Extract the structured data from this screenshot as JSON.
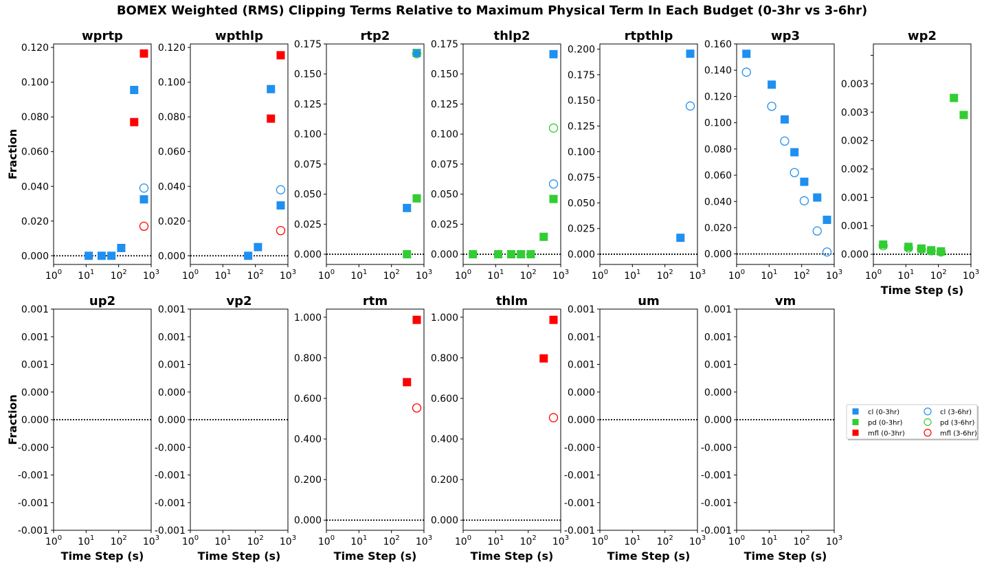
{
  "title": "BOMEX Weighted (RMS) Clipping Terms Relative to Maximum Physical Term In Each Budget (0-3hr vs 3-6hr)",
  "colors": {
    "cl": "#1f8ff0",
    "pd": "#32cd32",
    "mfl": "#ff0000"
  },
  "legend": {
    "placement": "right, lower half",
    "entries": [
      {
        "key": "cl_0_3",
        "label": "cl (0-3hr)",
        "var": "cl",
        "marker": "filled-square"
      },
      {
        "key": "pd_0_3",
        "label": "pd  (0-3hr)",
        "var": "pd",
        "marker": "filled-square"
      },
      {
        "key": "mfl_0_3",
        "label": "mfl (0-3hr)",
        "var": "mfl",
        "marker": "filled-square"
      },
      {
        "key": "cl_3_6",
        "label": "cl (3-6hr)",
        "var": "cl",
        "marker": "open-circle"
      },
      {
        "key": "pd_3_6",
        "label": "pd  (3-6hr)",
        "var": "pd",
        "marker": "open-circle"
      },
      {
        "key": "mfl_3_6",
        "label": "mfl (3-6hr)",
        "var": "mfl",
        "marker": "open-circle"
      }
    ]
  },
  "x_ticks": [
    "10^0",
    "10^1",
    "10^2",
    "10^3"
  ],
  "chart_data": [
    {
      "type": "scatter",
      "title": "wprtp",
      "xscale": "log",
      "xlim": [
        1,
        1000
      ],
      "ylim": [
        -0.005,
        0.122
      ],
      "ylabel": "Fraction",
      "xlabel": "",
      "yticks": [
        0,
        0.02,
        0.04,
        0.06,
        0.08,
        0.1,
        0.12
      ],
      "ytick_labels": [
        "0.000",
        "0.020",
        "0.040",
        "0.060",
        "0.080",
        "0.100",
        "0.120"
      ],
      "series": [
        {
          "name": "cl (0-3hr)",
          "key": "cl_0_3",
          "points": [
            [
              12,
              0.0
            ],
            [
              30,
              0.0
            ],
            [
              60,
              0.0
            ],
            [
              120,
              0.0045
            ],
            [
              300,
              0.0955
            ],
            [
              600,
              0.0325
            ]
          ]
        },
        {
          "name": "mfl (0-3hr)",
          "key": "mfl_0_3",
          "points": [
            [
              300,
              0.077
            ],
            [
              600,
              0.1165
            ]
          ]
        },
        {
          "name": "cl (3-6hr)",
          "key": "cl_3_6",
          "points": [
            [
              600,
              0.039
            ]
          ]
        },
        {
          "name": "mfl (3-6hr)",
          "key": "mfl_3_6",
          "points": [
            [
              600,
              0.017
            ]
          ]
        }
      ]
    },
    {
      "type": "scatter",
      "title": "wpthlp",
      "xscale": "log",
      "xlim": [
        1,
        1000
      ],
      "ylim": [
        -0.005,
        0.122
      ],
      "ylabel": "",
      "xlabel": "",
      "yticks": [
        0,
        0.02,
        0.04,
        0.06,
        0.08,
        0.1,
        0.12
      ],
      "ytick_labels": [
        "0.000",
        "0.020",
        "0.040",
        "0.060",
        "0.080",
        "0.100",
        "0.120"
      ],
      "series": [
        {
          "name": "cl (0-3hr)",
          "key": "cl_0_3",
          "points": [
            [
              60,
              0.0
            ],
            [
              120,
              0.005
            ],
            [
              300,
              0.096
            ],
            [
              600,
              0.029
            ]
          ]
        },
        {
          "name": "mfl (0-3hr)",
          "key": "mfl_0_3",
          "points": [
            [
              300,
              0.079
            ],
            [
              600,
              0.1155
            ]
          ]
        },
        {
          "name": "cl (3-6hr)",
          "key": "cl_3_6",
          "points": [
            [
              600,
              0.038
            ]
          ]
        },
        {
          "name": "mfl (3-6hr)",
          "key": "mfl_3_6",
          "points": [
            [
              600,
              0.0145
            ]
          ]
        }
      ]
    },
    {
      "type": "scatter",
      "title": "rtp2",
      "xscale": "log",
      "xlim": [
        1,
        1000
      ],
      "ylim": [
        -0.0085,
        0.175
      ],
      "ylabel": "",
      "xlabel": "",
      "yticks": [
        0,
        0.025,
        0.05,
        0.075,
        0.1,
        0.125,
        0.15,
        0.175
      ],
      "ytick_labels": [
        "0.000",
        "0.025",
        "0.050",
        "0.075",
        "0.100",
        "0.125",
        "0.150",
        "0.175"
      ],
      "series": [
        {
          "name": "cl (0-3hr)",
          "key": "cl_0_3",
          "points": [
            [
              300,
              0.0385
            ],
            [
              600,
              0.1675
            ]
          ]
        },
        {
          "name": "pd  (0-3hr)",
          "key": "pd_0_3",
          "points": [
            [
              300,
              0.0
            ],
            [
              600,
              0.0465
            ]
          ]
        },
        {
          "name": "cl (3-6hr)",
          "key": "cl_3_6",
          "points": [
            [
              600,
              0.167
            ]
          ]
        },
        {
          "name": "pd  (3-6hr)",
          "key": "pd_3_6",
          "points": [
            [
              600,
              0.167
            ]
          ]
        }
      ]
    },
    {
      "type": "scatter",
      "title": "thlp2",
      "xscale": "log",
      "xlim": [
        1,
        1000
      ],
      "ylim": [
        -0.0085,
        0.175
      ],
      "ylabel": "",
      "xlabel": "",
      "yticks": [
        0,
        0.025,
        0.05,
        0.075,
        0.1,
        0.125,
        0.15,
        0.175
      ],
      "ytick_labels": [
        "0.000",
        "0.025",
        "0.050",
        "0.075",
        "0.100",
        "0.125",
        "0.150",
        "0.175"
      ],
      "series": [
        {
          "name": "cl (0-3hr)",
          "key": "cl_0_3",
          "points": [
            [
              600,
              0.1665
            ]
          ]
        },
        {
          "name": "pd  (0-3hr)",
          "key": "pd_0_3",
          "points": [
            [
              2,
              0.0
            ],
            [
              12,
              0.0
            ],
            [
              30,
              0.0
            ],
            [
              60,
              0.0
            ],
            [
              120,
              0.0
            ],
            [
              300,
              0.0145
            ],
            [
              600,
              0.046
            ]
          ]
        },
        {
          "name": "cl (3-6hr)",
          "key": "cl_3_6",
          "points": [
            [
              600,
              0.0585
            ]
          ]
        },
        {
          "name": "pd  (3-6hr)",
          "key": "pd_3_6",
          "points": [
            [
              600,
              0.105
            ]
          ]
        }
      ]
    },
    {
      "type": "scatter",
      "title": "rtpthlp",
      "xscale": "log",
      "xlim": [
        1,
        1000
      ],
      "ylim": [
        -0.01,
        0.205
      ],
      "ylabel": "",
      "xlabel": "",
      "yticks": [
        0,
        0.025,
        0.05,
        0.075,
        0.1,
        0.125,
        0.15,
        0.175,
        0.2
      ],
      "ytick_labels": [
        "0.000",
        "0.025",
        "0.050",
        "0.075",
        "0.100",
        "0.125",
        "0.150",
        "0.175",
        "0.200"
      ],
      "series": [
        {
          "name": "cl (0-3hr)",
          "key": "cl_0_3",
          "points": [
            [
              300,
              0.016
            ],
            [
              600,
              0.1955
            ]
          ]
        },
        {
          "name": "cl (3-6hr)",
          "key": "cl_3_6",
          "points": [
            [
              600,
              0.1445
            ]
          ]
        }
      ]
    },
    {
      "type": "scatter",
      "title": "wp3",
      "xscale": "log",
      "xlim": [
        1,
        1000
      ],
      "ylim": [
        -0.008,
        0.16
      ],
      "ylabel": "",
      "xlabel": "",
      "yticks": [
        0,
        0.02,
        0.04,
        0.06,
        0.08,
        0.1,
        0.12,
        0.14,
        0.16
      ],
      "ytick_labels": [
        "0.000",
        "0.020",
        "0.040",
        "0.060",
        "0.080",
        "0.100",
        "0.120",
        "0.140",
        "0.160"
      ],
      "series": [
        {
          "name": "cl (0-3hr)",
          "key": "cl_0_3",
          "points": [
            [
              2,
              0.1525
            ],
            [
              12,
              0.129
            ],
            [
              30,
              0.1025
            ],
            [
              60,
              0.0775
            ],
            [
              120,
              0.055
            ],
            [
              300,
              0.043
            ],
            [
              600,
              0.026
            ]
          ]
        },
        {
          "name": "cl (3-6hr)",
          "key": "cl_3_6",
          "points": [
            [
              2,
              0.1385
            ],
            [
              12,
              0.1125
            ],
            [
              30,
              0.086
            ],
            [
              60,
              0.062
            ],
            [
              120,
              0.0405
            ],
            [
              300,
              0.0175
            ],
            [
              600,
              0.0015
            ]
          ]
        }
      ]
    },
    {
      "type": "scatter",
      "title": "wp2",
      "xscale": "log",
      "xlim": [
        1,
        1000
      ],
      "ylim": [
        -0.00018,
        0.0037
      ],
      "ylabel": "",
      "xlabel": "Time Step (s)",
      "yticks": [
        0,
        0.0005,
        0.001,
        0.0015,
        0.002,
        0.0025,
        0.003,
        0.0035
      ],
      "ytick_labels": [
        "0.000",
        "0.001",
        "0.001",
        "0.002",
        "0.002",
        "0.003",
        "0.003",
        ""
      ],
      "series": [
        {
          "name": "pd  (0-3hr)",
          "key": "pd_0_3",
          "points": [
            [
              2,
              0.00017
            ],
            [
              12,
              0.00013
            ],
            [
              30,
              0.0001
            ],
            [
              60,
              7e-05
            ],
            [
              120,
              5e-05
            ],
            [
              300,
              0.00275
            ],
            [
              600,
              0.00245
            ]
          ]
        },
        {
          "name": "pd  (3-6hr)",
          "key": "pd_3_6",
          "points": [
            [
              2,
              0.00015
            ],
            [
              12,
              0.00011
            ],
            [
              30,
              9e-05
            ],
            [
              60,
              6e-05
            ],
            [
              120,
              4e-05
            ]
          ]
        }
      ]
    },
    {
      "type": "scatter",
      "title": "up2",
      "xscale": "log",
      "xlim": [
        1,
        1000
      ],
      "ylim": [
        -0.001,
        0.001
      ],
      "ylabel": "Fraction",
      "xlabel": "Time Step (s)",
      "yticks": [
        -0.001,
        -0.00075,
        -0.0005,
        -0.00025,
        0,
        0.00025,
        0.0005,
        0.00075,
        0.001
      ],
      "ytick_labels": [
        "-0.001",
        "-0.001",
        "-0.001",
        "-0.000",
        "0.000",
        "0.000",
        "0.001",
        "0.001",
        "0.001"
      ],
      "series": []
    },
    {
      "type": "scatter",
      "title": "vp2",
      "xscale": "log",
      "xlim": [
        1,
        1000
      ],
      "ylim": [
        -0.001,
        0.001
      ],
      "ylabel": "",
      "xlabel": "Time Step (s)",
      "yticks": [
        -0.001,
        -0.00075,
        -0.0005,
        -0.00025,
        0,
        0.00025,
        0.0005,
        0.00075,
        0.001
      ],
      "ytick_labels": [
        "-0.001",
        "-0.001",
        "-0.001",
        "-0.000",
        "0.000",
        "0.000",
        "0.001",
        "0.001",
        "0.001"
      ],
      "series": []
    },
    {
      "type": "scatter",
      "title": "rtm",
      "xscale": "log",
      "xlim": [
        1,
        1000
      ],
      "ylim": [
        -0.05,
        1.04
      ],
      "ylabel": "",
      "xlabel": "Time Step (s)",
      "yticks": [
        0,
        0.2,
        0.4,
        0.6,
        0.8,
        1.0
      ],
      "ytick_labels": [
        "0.000",
        "0.200",
        "0.400",
        "0.600",
        "0.800",
        "1.000"
      ],
      "series": [
        {
          "name": "mfl (0-3hr)",
          "key": "mfl_0_3",
          "points": [
            [
              300,
              0.68
            ],
            [
              600,
              0.987
            ]
          ]
        },
        {
          "name": "mfl (3-6hr)",
          "key": "mfl_3_6",
          "points": [
            [
              600,
              0.553
            ]
          ]
        }
      ]
    },
    {
      "type": "scatter",
      "title": "thlm",
      "xscale": "log",
      "xlim": [
        1,
        1000
      ],
      "ylim": [
        -0.05,
        1.04
      ],
      "ylabel": "",
      "xlabel": "Time Step (s)",
      "yticks": [
        0,
        0.2,
        0.4,
        0.6,
        0.8,
        1.0
      ],
      "ytick_labels": [
        "0.000",
        "0.200",
        "0.400",
        "0.600",
        "0.800",
        "1.000"
      ],
      "series": [
        {
          "name": "mfl (0-3hr)",
          "key": "mfl_0_3",
          "points": [
            [
              300,
              0.797
            ],
            [
              600,
              0.987
            ]
          ]
        },
        {
          "name": "mfl (3-6hr)",
          "key": "mfl_3_6",
          "points": [
            [
              600,
              0.505
            ]
          ]
        }
      ]
    },
    {
      "type": "scatter",
      "title": "um",
      "xscale": "log",
      "xlim": [
        1,
        1000
      ],
      "ylim": [
        -0.001,
        0.001
      ],
      "ylabel": "",
      "xlabel": "Time Step (s)",
      "yticks": [
        -0.001,
        -0.00075,
        -0.0005,
        -0.00025,
        0,
        0.00025,
        0.0005,
        0.00075,
        0.001
      ],
      "ytick_labels": [
        "-0.001",
        "-0.001",
        "-0.001",
        "-0.000",
        "0.000",
        "0.000",
        "0.001",
        "0.001",
        "0.001"
      ],
      "series": []
    },
    {
      "type": "scatter",
      "title": "vm",
      "xscale": "log",
      "xlim": [
        1,
        1000
      ],
      "ylim": [
        -0.001,
        0.001
      ],
      "ylabel": "",
      "xlabel": "Time Step (s)",
      "yticks": [
        -0.001,
        -0.00075,
        -0.0005,
        -0.00025,
        0,
        0.00025,
        0.0005,
        0.00075,
        0.001
      ],
      "ytick_labels": [
        "-0.001",
        "-0.001",
        "-0.001",
        "-0.000",
        "0.000",
        "0.000",
        "0.001",
        "0.001",
        "0.001"
      ],
      "series": []
    }
  ]
}
